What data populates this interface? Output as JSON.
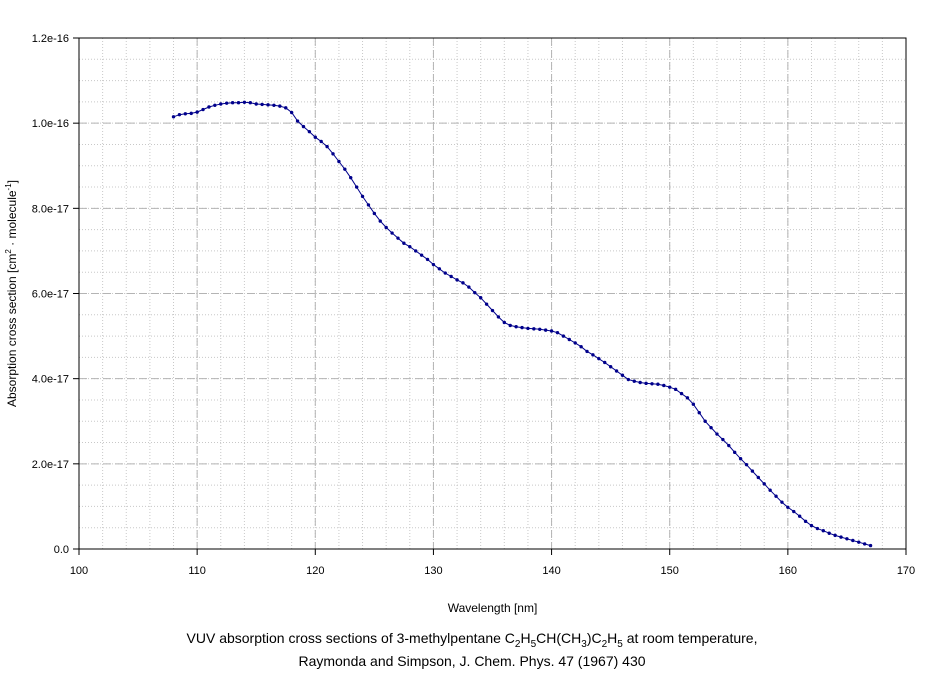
{
  "chart_data": {
    "type": "line",
    "xlabel": "Wavelength [nm]",
    "ylabel_parts": [
      "Absorption cross section [cm",
      "2",
      " · molecule",
      "-1",
      "]"
    ],
    "xlim": [
      100,
      170
    ],
    "ylim": [
      0,
      1.2e-16
    ],
    "x_ticks": [
      100,
      110,
      120,
      130,
      140,
      150,
      160,
      170
    ],
    "x_tick_labels": [
      "100",
      "110",
      "120",
      "130",
      "140",
      "150",
      "160",
      "170"
    ],
    "y_ticks": [
      0,
      2e-17,
      4e-17,
      6e-17,
      8e-17,
      1e-16,
      1.2e-16
    ],
    "y_tick_labels": [
      "0.0",
      "2.0e-17",
      "4.0e-17",
      "6.0e-17",
      "8.0e-17",
      "1.0e-16",
      "1.2e-16"
    ],
    "grid": true,
    "legend": "none",
    "series": [
      {
        "color": "#00008b",
        "marker": "dot",
        "x": [
          108,
          108.5,
          109,
          109.5,
          110,
          110.5,
          111,
          111.5,
          112,
          112.5,
          113,
          113.5,
          114,
          114.5,
          115,
          115.5,
          116,
          116.5,
          117,
          117.5,
          118,
          118.5,
          119,
          119.5,
          120,
          120.5,
          121,
          121.5,
          122,
          122.5,
          123,
          123.5,
          124,
          124.5,
          125,
          125.5,
          126,
          126.5,
          127,
          127.5,
          128,
          128.5,
          129,
          129.5,
          130,
          130.5,
          131,
          131.5,
          132,
          132.5,
          133,
          133.5,
          134,
          134.5,
          135,
          135.5,
          136,
          136.5,
          137,
          137.5,
          138,
          138.5,
          139,
          139.5,
          140,
          140.5,
          141,
          141.5,
          142,
          142.5,
          143,
          143.5,
          144,
          144.5,
          145,
          145.5,
          146,
          146.5,
          147,
          147.5,
          148,
          148.5,
          149,
          149.5,
          150,
          150.5,
          151,
          151.5,
          152,
          152.5,
          153,
          153.5,
          154,
          154.5,
          155,
          155.5,
          156,
          156.5,
          157,
          157.5,
          158,
          158.5,
          159,
          159.5,
          160,
          160.5,
          161,
          161.5,
          162,
          162.5,
          163,
          163.5,
          164,
          164.5,
          165,
          165.5,
          166,
          166.5,
          167
        ],
        "y": [
          1.015e-16,
          1.02e-16,
          1.022e-16,
          1.023e-16,
          1.026e-16,
          1.032e-16,
          1.038e-16,
          1.042e-16,
          1.045e-16,
          1.047e-16,
          1.048e-16,
          1.048e-16,
          1.049e-16,
          1.048e-16,
          1.045e-16,
          1.044e-16,
          1.043e-16,
          1.042e-16,
          1.04e-16,
          1.036e-16,
          1.025e-16,
          1.005e-16,
          9.92e-17,
          9.8e-17,
          9.67e-17,
          9.57e-17,
          9.45e-17,
          9.28e-17,
          9.1e-17,
          8.92e-17,
          8.72e-17,
          8.5e-17,
          8.28e-17,
          8.08e-17,
          7.88e-17,
          7.7e-17,
          7.55e-17,
          7.42e-17,
          7.3e-17,
          7.18e-17,
          7.1e-17,
          7e-17,
          6.9e-17,
          6.8e-17,
          6.68e-17,
          6.58e-17,
          6.48e-17,
          6.4e-17,
          6.32e-17,
          6.25e-17,
          6.15e-17,
          6.02e-17,
          5.9e-17,
          5.75e-17,
          5.6e-17,
          5.45e-17,
          5.32e-17,
          5.25e-17,
          5.22e-17,
          5.2e-17,
          5.18e-17,
          5.17e-17,
          5.16e-17,
          5.14e-17,
          5.12e-17,
          5.08e-17,
          5e-17,
          4.92e-17,
          4.84e-17,
          4.75e-17,
          4.64e-17,
          4.56e-17,
          4.47e-17,
          4.38e-17,
          4.28e-17,
          4.18e-17,
          4.08e-17,
          3.98e-17,
          3.94e-17,
          3.91e-17,
          3.89e-17,
          3.88e-17,
          3.87e-17,
          3.84e-17,
          3.8e-17,
          3.75e-17,
          3.65e-17,
          3.55e-17,
          3.4e-17,
          3.2e-17,
          3e-17,
          2.85e-17,
          2.7e-17,
          2.57e-17,
          2.43e-17,
          2.27e-17,
          2.12e-17,
          1.98e-17,
          1.83e-17,
          1.68e-17,
          1.53e-17,
          1.38e-17,
          1.24e-17,
          1.1e-17,
          9.8e-18,
          8.8e-18,
          7.7e-18,
          6.5e-18,
          5.5e-18,
          4.8e-18,
          4.3e-18,
          3.7e-18,
          3.2e-18,
          2.8e-18,
          2.4e-18,
          2e-18,
          1.6e-18,
          1.2e-18,
          8e-19
        ]
      }
    ]
  },
  "caption": {
    "line1_parts": [
      "VUV absorption cross sections of 3-methylpentane C",
      "2",
      "H",
      "5",
      "CH(CH",
      "3",
      ")C",
      "2",
      "H",
      "5",
      " at room temperature,"
    ],
    "line2": "Raymonda and Simpson, J. Chem. Phys. 47 (1967) 430"
  }
}
